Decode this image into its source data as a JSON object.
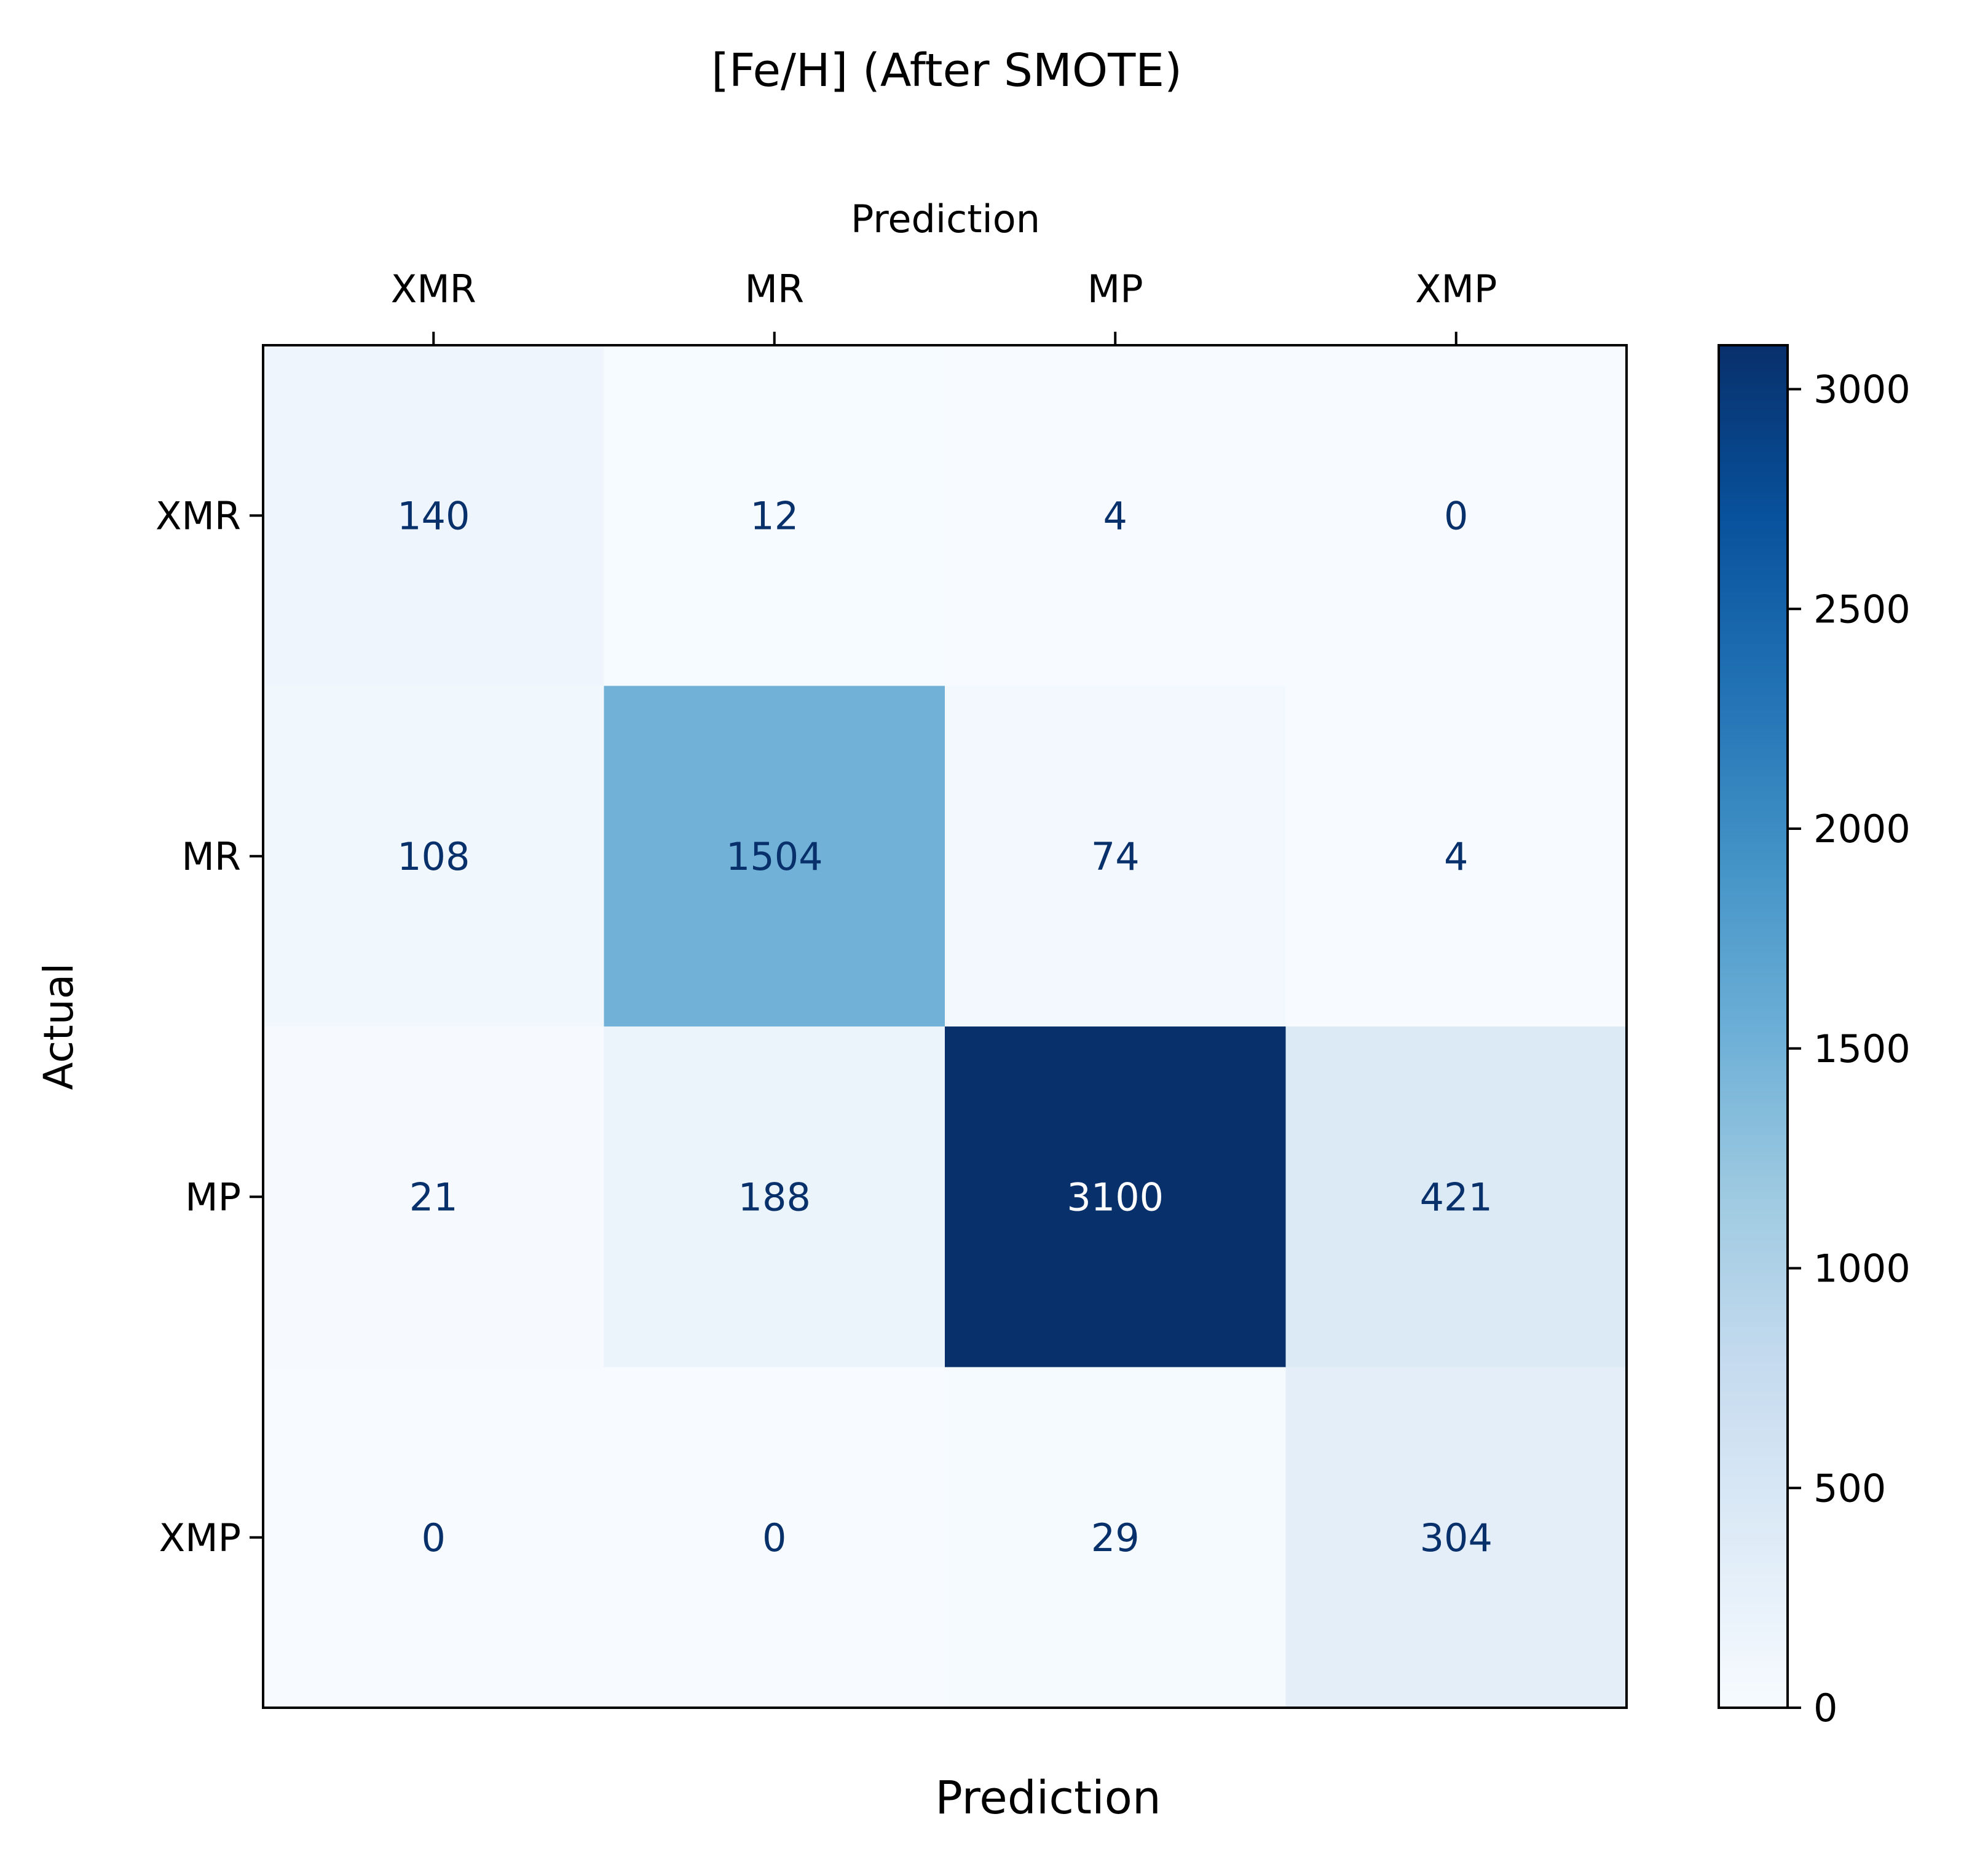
{
  "chart_data": {
    "type": "heatmap",
    "title": "[Fe/H] (After SMOTE)",
    "top_axis_label": "Prediction",
    "xlabel": "Prediction",
    "ylabel": "Actual",
    "x_categories": [
      "XMR",
      "MR",
      "MP",
      "XMP"
    ],
    "y_categories": [
      "XMR",
      "MR",
      "MP",
      "XMP"
    ],
    "matrix": [
      [
        140,
        12,
        4,
        0
      ],
      [
        108,
        1504,
        74,
        4
      ],
      [
        21,
        188,
        3100,
        421
      ],
      [
        0,
        0,
        29,
        304
      ]
    ],
    "colormap": "Blues",
    "colorbar": {
      "min": 0,
      "max": 3100,
      "ticks": [
        0,
        500,
        1000,
        1500,
        2000,
        2500,
        3000
      ]
    },
    "text_colors": {
      "dark": "#08306b",
      "light": "#ffffff"
    }
  }
}
